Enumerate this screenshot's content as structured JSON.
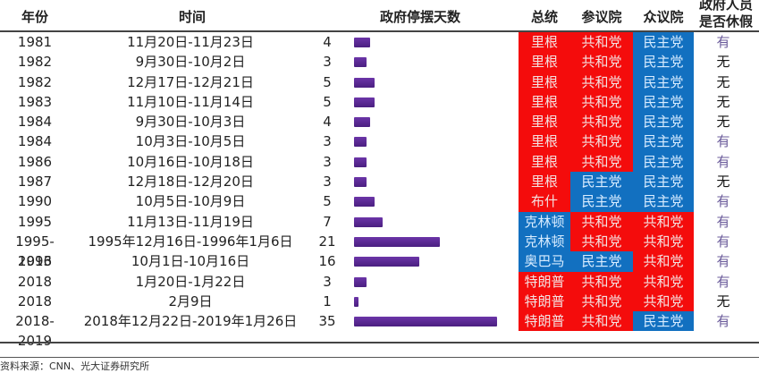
{
  "header": {
    "year": "年份",
    "time": "时间",
    "days": "政府停摆天数",
    "president": "总统",
    "senate": "参议院",
    "house": "众议院",
    "furlough_line1": "政府人员",
    "furlough_line2": "是否休假"
  },
  "colors": {
    "republican": "#f40c0c",
    "democrat": "#1270c0",
    "bar": "#5a2a95"
  },
  "rows": [
    {
      "year": "1981",
      "time": "11月20日-11月23日",
      "days": 4,
      "president": "里根",
      "president_party": "red",
      "senate": "共和党",
      "senate_party": "red",
      "house": "民主党",
      "house_party": "blue",
      "furlough": "有"
    },
    {
      "year": "1982",
      "time": "9月30日-10月2日",
      "days": 3,
      "president": "里根",
      "president_party": "red",
      "senate": "共和党",
      "senate_party": "red",
      "house": "民主党",
      "house_party": "blue",
      "furlough": "无"
    },
    {
      "year": "1982",
      "time": "12月17日-12月21日",
      "days": 5,
      "president": "里根",
      "president_party": "red",
      "senate": "共和党",
      "senate_party": "red",
      "house": "民主党",
      "house_party": "blue",
      "furlough": "无"
    },
    {
      "year": "1983",
      "time": "11月10日-11月14日",
      "days": 5,
      "president": "里根",
      "president_party": "red",
      "senate": "共和党",
      "senate_party": "red",
      "house": "民主党",
      "house_party": "blue",
      "furlough": "无"
    },
    {
      "year": "1984",
      "time": "9月30日-10月3日",
      "days": 4,
      "president": "里根",
      "president_party": "red",
      "senate": "共和党",
      "senate_party": "red",
      "house": "民主党",
      "house_party": "blue",
      "furlough": "无"
    },
    {
      "year": "1984",
      "time": "10月3日-10月5日",
      "days": 3,
      "president": "里根",
      "president_party": "red",
      "senate": "共和党",
      "senate_party": "red",
      "house": "民主党",
      "house_party": "blue",
      "furlough": "有"
    },
    {
      "year": "1986",
      "time": "10月16日-10月18日",
      "days": 3,
      "president": "里根",
      "president_party": "red",
      "senate": "共和党",
      "senate_party": "red",
      "house": "民主党",
      "house_party": "blue",
      "furlough": "有"
    },
    {
      "year": "1987",
      "time": "12月18日-12月20日",
      "days": 3,
      "president": "里根",
      "president_party": "red",
      "senate": "民主党",
      "senate_party": "blue",
      "house": "民主党",
      "house_party": "blue",
      "furlough": "无"
    },
    {
      "year": "1990",
      "time": "10月5日-10月9日",
      "days": 5,
      "president": "布什",
      "president_party": "red",
      "senate": "民主党",
      "senate_party": "blue",
      "house": "民主党",
      "house_party": "blue",
      "furlough": "有"
    },
    {
      "year": "1995",
      "time": "11月13日-11月19日",
      "days": 7,
      "president": "克林顿",
      "president_party": "blue",
      "senate": "共和党",
      "senate_party": "red",
      "house": "共和党",
      "house_party": "red",
      "furlough": "有"
    },
    {
      "year": "1995-1996",
      "time": "1995年12月16日-1996年1月6日",
      "days": 21,
      "president": "克林顿",
      "president_party": "blue",
      "senate": "共和党",
      "senate_party": "red",
      "house": "共和党",
      "house_party": "red",
      "furlough": "有"
    },
    {
      "year": "2013",
      "time": "10月1日-10月16日",
      "days": 16,
      "president": "奥巴马",
      "president_party": "blue",
      "senate": "民主党",
      "senate_party": "blue",
      "house": "共和党",
      "house_party": "red",
      "furlough": "有"
    },
    {
      "year": "2018",
      "time": "1月20日-1月22日",
      "days": 3,
      "president": "特朗普",
      "president_party": "red",
      "senate": "共和党",
      "senate_party": "red",
      "house": "共和党",
      "house_party": "red",
      "furlough": "有"
    },
    {
      "year": "2018",
      "time": "2月9日",
      "days": 1,
      "president": "特朗普",
      "president_party": "red",
      "senate": "共和党",
      "senate_party": "red",
      "house": "共和党",
      "house_party": "red",
      "furlough": "无"
    },
    {
      "year": "2018-2019",
      "time": "2018年12月22日-2019年1月26日",
      "days": 35,
      "president": "特朗普",
      "president_party": "red",
      "senate": "共和党",
      "senate_party": "red",
      "house": "民主党",
      "house_party": "blue",
      "furlough": "有"
    }
  ],
  "footer": {
    "source": "资料来源：CNN、光大证券研究所"
  },
  "chart_data": {
    "type": "table",
    "title": "",
    "columns": [
      "年份",
      "时间",
      "政府停摆天数",
      "总统",
      "参议院",
      "众议院",
      "政府人员是否休假"
    ],
    "categories": [
      "1981",
      "1982",
      "1982",
      "1983",
      "1984",
      "1984",
      "1986",
      "1987",
      "1990",
      "1995",
      "1995-1996",
      "2013",
      "2018",
      "2018",
      "2018-2019"
    ],
    "series": [
      {
        "name": "政府停摆天数",
        "type": "bar",
        "values": [
          4,
          3,
          5,
          5,
          4,
          3,
          3,
          3,
          5,
          7,
          21,
          16,
          3,
          1,
          35
        ]
      }
    ],
    "xlabel": "",
    "ylabel": "政府停摆天数",
    "legend": [
      {
        "label": "共和党",
        "color": "#f40c0c"
      },
      {
        "label": "民主党",
        "color": "#1270c0"
      }
    ],
    "source": "资料来源：CNN、光大证券研究所"
  }
}
